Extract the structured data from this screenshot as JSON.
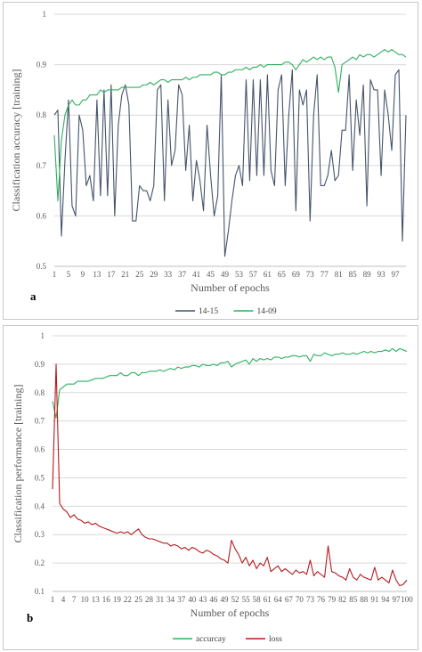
{
  "chart_data": [
    {
      "type": "line",
      "panel_label": "a",
      "xlabel": "Number of epochs",
      "ylabel": "Classification accuracy [training]",
      "ylim": [
        0.5,
        1.0
      ],
      "yticks": [
        "0.5",
        "0.6",
        "0.7",
        "0.8",
        "0.9",
        "1"
      ],
      "xticks": [
        "1",
        "5",
        "9",
        "13",
        "17",
        "21",
        "25",
        "29",
        "33",
        "37",
        "41",
        "45",
        "49",
        "53",
        "57",
        "61",
        "65",
        "69",
        "73",
        "77",
        "81",
        "85",
        "89",
        "93",
        "97"
      ],
      "x": [
        1,
        2,
        3,
        4,
        5,
        6,
        7,
        8,
        9,
        10,
        11,
        12,
        13,
        14,
        15,
        16,
        17,
        18,
        19,
        20,
        21,
        22,
        23,
        24,
        25,
        26,
        27,
        28,
        29,
        30,
        31,
        32,
        33,
        34,
        35,
        36,
        37,
        38,
        39,
        40,
        41,
        42,
        43,
        44,
        45,
        46,
        47,
        48,
        49,
        50,
        51,
        52,
        53,
        54,
        55,
        56,
        57,
        58,
        59,
        60,
        61,
        62,
        63,
        64,
        65,
        66,
        67,
        68,
        69,
        70,
        71,
        72,
        73,
        74,
        75,
        76,
        77,
        78,
        79,
        80,
        81,
        82,
        83,
        84,
        85,
        86,
        87,
        88,
        89,
        90,
        91,
        92,
        93,
        94,
        95,
        96,
        97,
        98,
        99,
        100
      ],
      "legend_position": "bottom",
      "grid": "horizontal",
      "series": [
        {
          "name": "14-15",
          "color": "#44546a",
          "values": [
            0.8,
            0.81,
            0.56,
            0.71,
            0.83,
            0.62,
            0.6,
            0.8,
            0.77,
            0.66,
            0.68,
            0.63,
            0.83,
            0.64,
            0.85,
            0.64,
            0.86,
            0.6,
            0.78,
            0.84,
            0.86,
            0.82,
            0.59,
            0.59,
            0.66,
            0.65,
            0.65,
            0.63,
            0.66,
            0.85,
            0.86,
            0.63,
            0.83,
            0.7,
            0.73,
            0.86,
            0.84,
            0.69,
            0.78,
            0.63,
            0.71,
            0.67,
            0.61,
            0.78,
            0.68,
            0.6,
            0.64,
            0.88,
            0.52,
            0.57,
            0.63,
            0.68,
            0.7,
            0.66,
            0.87,
            0.67,
            0.87,
            0.68,
            0.87,
            0.68,
            0.88,
            0.69,
            0.66,
            0.85,
            0.88,
            0.66,
            0.8,
            0.89,
            0.61,
            0.85,
            0.82,
            0.85,
            0.59,
            0.8,
            0.88,
            0.66,
            0.66,
            0.68,
            0.73,
            0.67,
            0.68,
            0.77,
            0.77,
            0.88,
            0.69,
            0.83,
            0.76,
            0.86,
            0.62,
            0.87,
            0.85,
            0.85,
            0.68,
            0.85,
            0.8,
            0.73,
            0.88,
            0.89,
            0.55,
            0.8
          ]
        },
        {
          "name": "14-09",
          "color": "#2eb060",
          "values": [
            0.76,
            0.63,
            0.75,
            0.8,
            0.82,
            0.83,
            0.82,
            0.82,
            0.83,
            0.83,
            0.84,
            0.84,
            0.84,
            0.85,
            0.845,
            0.85,
            0.85,
            0.85,
            0.85,
            0.855,
            0.855,
            0.855,
            0.855,
            0.855,
            0.855,
            0.86,
            0.86,
            0.865,
            0.86,
            0.865,
            0.87,
            0.87,
            0.865,
            0.87,
            0.87,
            0.87,
            0.87,
            0.875,
            0.87,
            0.875,
            0.875,
            0.88,
            0.88,
            0.88,
            0.88,
            0.885,
            0.885,
            0.88,
            0.88,
            0.885,
            0.885,
            0.89,
            0.89,
            0.89,
            0.895,
            0.89,
            0.895,
            0.895,
            0.9,
            0.895,
            0.9,
            0.9,
            0.9,
            0.9,
            0.9,
            0.905,
            0.905,
            0.9,
            0.89,
            0.9,
            0.91,
            0.905,
            0.91,
            0.915,
            0.91,
            0.915,
            0.91,
            0.915,
            0.915,
            0.895,
            0.845,
            0.9,
            0.905,
            0.91,
            0.915,
            0.91,
            0.92,
            0.915,
            0.92,
            0.92,
            0.915,
            0.92,
            0.925,
            0.93,
            0.925,
            0.93,
            0.925,
            0.92,
            0.92,
            0.915
          ]
        }
      ]
    },
    {
      "type": "line",
      "panel_label": "b",
      "xlabel": "Number of epochs",
      "ylabel": "Classification performance [training]",
      "ylim": [
        0.1,
        1.0
      ],
      "yticks": [
        "0.1",
        "0.2",
        "0.3",
        "0.4",
        "0.5",
        "0.6",
        "0.7",
        "0.8",
        "0.9",
        "1"
      ],
      "xticks": [
        "1",
        "4",
        "7",
        "10",
        "13",
        "16",
        "19",
        "22",
        "25",
        "28",
        "31",
        "34",
        "37",
        "40",
        "43",
        "46",
        "49",
        "52",
        "55",
        "58",
        "61",
        "64",
        "67",
        "70",
        "73",
        "76",
        "79",
        "82",
        "85",
        "88",
        "91",
        "94",
        "97",
        "100"
      ],
      "x": [
        1,
        2,
        3,
        4,
        5,
        6,
        7,
        8,
        9,
        10,
        11,
        12,
        13,
        14,
        15,
        16,
        17,
        18,
        19,
        20,
        21,
        22,
        23,
        24,
        25,
        26,
        27,
        28,
        29,
        30,
        31,
        32,
        33,
        34,
        35,
        36,
        37,
        38,
        39,
        40,
        41,
        42,
        43,
        44,
        45,
        46,
        47,
        48,
        49,
        50,
        51,
        52,
        53,
        54,
        55,
        56,
        57,
        58,
        59,
        60,
        61,
        62,
        63,
        64,
        65,
        66,
        67,
        68,
        69,
        70,
        71,
        72,
        73,
        74,
        75,
        76,
        77,
        78,
        79,
        80,
        81,
        82,
        83,
        84,
        85,
        86,
        87,
        88,
        89,
        90,
        91,
        92,
        93,
        94,
        95,
        96,
        97,
        98,
        99,
        100
      ],
      "legend_position": "bottom",
      "grid": "horizontal",
      "series": [
        {
          "name": "accurcay",
          "color": "#2eb060",
          "values": [
            0.77,
            0.71,
            0.81,
            0.82,
            0.83,
            0.83,
            0.83,
            0.84,
            0.84,
            0.84,
            0.84,
            0.845,
            0.85,
            0.85,
            0.85,
            0.855,
            0.86,
            0.86,
            0.86,
            0.87,
            0.86,
            0.86,
            0.87,
            0.87,
            0.86,
            0.87,
            0.87,
            0.875,
            0.875,
            0.875,
            0.88,
            0.875,
            0.88,
            0.885,
            0.88,
            0.89,
            0.885,
            0.89,
            0.89,
            0.895,
            0.895,
            0.89,
            0.9,
            0.895,
            0.895,
            0.9,
            0.895,
            0.905,
            0.905,
            0.91,
            0.89,
            0.9,
            0.905,
            0.91,
            0.915,
            0.9,
            0.92,
            0.91,
            0.92,
            0.915,
            0.92,
            0.915,
            0.925,
            0.925,
            0.92,
            0.925,
            0.925,
            0.93,
            0.93,
            0.925,
            0.93,
            0.93,
            0.91,
            0.935,
            0.93,
            0.93,
            0.94,
            0.935,
            0.93,
            0.935,
            0.935,
            0.94,
            0.935,
            0.935,
            0.94,
            0.935,
            0.94,
            0.945,
            0.94,
            0.945,
            0.94,
            0.945,
            0.945,
            0.95,
            0.945,
            0.955,
            0.945,
            0.955,
            0.95,
            0.945
          ]
        },
        {
          "name": "loss",
          "color": "#b8191c",
          "values": [
            0.46,
            0.9,
            0.41,
            0.39,
            0.38,
            0.36,
            0.37,
            0.355,
            0.35,
            0.34,
            0.345,
            0.335,
            0.34,
            0.33,
            0.325,
            0.32,
            0.315,
            0.31,
            0.305,
            0.31,
            0.305,
            0.31,
            0.3,
            0.31,
            0.32,
            0.3,
            0.29,
            0.285,
            0.285,
            0.28,
            0.275,
            0.27,
            0.27,
            0.26,
            0.265,
            0.26,
            0.25,
            0.255,
            0.245,
            0.255,
            0.25,
            0.24,
            0.235,
            0.245,
            0.24,
            0.23,
            0.225,
            0.215,
            0.21,
            0.2,
            0.28,
            0.25,
            0.23,
            0.2,
            0.22,
            0.19,
            0.21,
            0.18,
            0.2,
            0.19,
            0.22,
            0.17,
            0.18,
            0.19,
            0.17,
            0.18,
            0.17,
            0.16,
            0.175,
            0.165,
            0.17,
            0.16,
            0.21,
            0.155,
            0.17,
            0.16,
            0.15,
            0.26,
            0.17,
            0.165,
            0.155,
            0.15,
            0.14,
            0.18,
            0.15,
            0.14,
            0.16,
            0.15,
            0.145,
            0.14,
            0.185,
            0.14,
            0.15,
            0.14,
            0.13,
            0.175,
            0.14,
            0.12,
            0.125,
            0.14
          ]
        }
      ]
    }
  ]
}
